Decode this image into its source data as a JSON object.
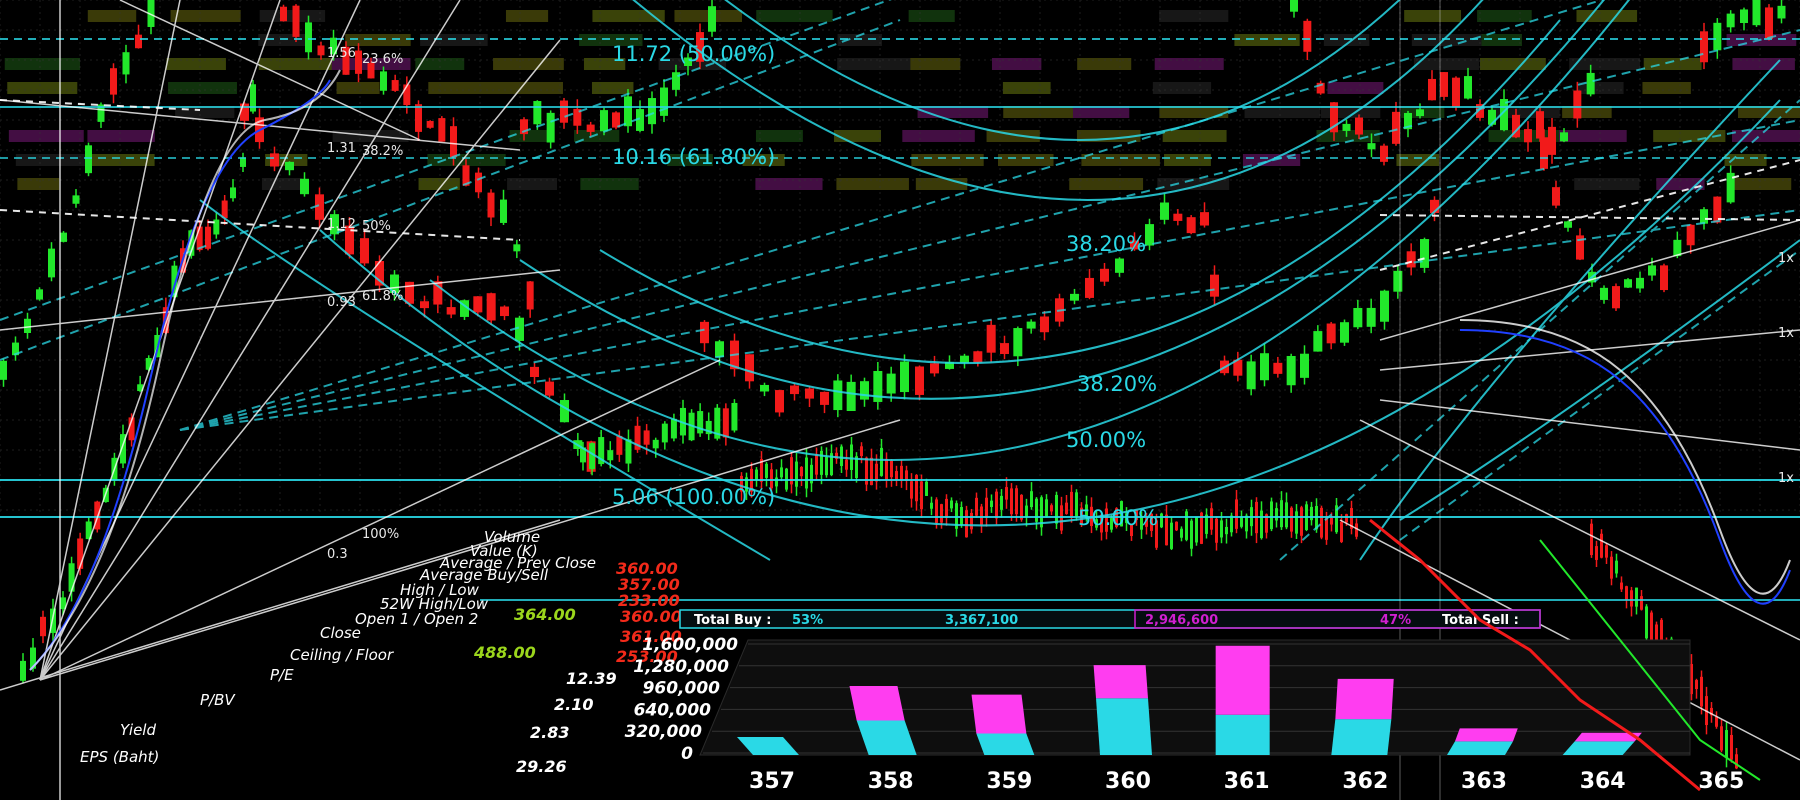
{
  "fib_labels": {
    "top_1": "11.72 (50.00%)",
    "top_2": "10.16 (61.80%)",
    "arc_382_upper": "38.20%",
    "arc_382_lower": "38.20%",
    "arc_500_upper": "50.00%",
    "arc_500_lower": "50.00%",
    "base": "5.06 (100.00%)"
  },
  "side_ratios": {
    "r1": "1.56",
    "p1": "23.6%",
    "r2": "1.31",
    "p2": "38.2%",
    "r3": "1.12",
    "p3": "50%",
    "r4": "0.93",
    "p4": "61.8%",
    "r5": "0.3",
    "p5": "100%"
  },
  "right_edge": {
    "a": "1x",
    "b": "1x",
    "c": "1x"
  },
  "stats": {
    "labels": [
      "Volume",
      "Value (K)",
      "Average / Prev Close",
      "Average Buy/Sell",
      "High / Low",
      "52W High/Low",
      "Open 1 / Open 2",
      "Close",
      "Ceiling / Floor",
      "P/E",
      "P/BV",
      "Yield",
      "EPS (Baht)"
    ],
    "col_a": [
      "364.00",
      "488.00"
    ],
    "col_b": [
      "360.00",
      "357.00",
      "233.00",
      "360.00",
      "361.00",
      "253.00"
    ],
    "col_c": [
      "12.39",
      "2.10",
      "2.83",
      "29.26"
    ]
  },
  "total_bar": {
    "buy_label": "Total Buy :",
    "buy_pct": "53%",
    "buy_vol": "3,367,100",
    "sell_vol": "2,946,600",
    "sell_pct": "47%",
    "sell_label": "Total Sell :"
  },
  "colors": {
    "cyan": "#2ad9e6",
    "magenta": "#ff3df0",
    "bull": "#22e82b",
    "bear": "#f21a1a"
  },
  "chart_data": {
    "type": "bar",
    "categories": [
      "357",
      "358",
      "359",
      "360",
      "361",
      "362",
      "363",
      "364",
      "365"
    ],
    "y_tick_labels": [
      "1,600,000",
      "1,280,000",
      "960,000",
      "640,000",
      "320,000",
      "0"
    ],
    "ylim": [
      0,
      1600000
    ],
    "series": [
      {
        "values": [
          0,
          480000,
          540000,
          460000,
          960000,
          560000,
          180000,
          120000,
          0
        ]
      },
      {
        "values": [
          250000,
          480000,
          300000,
          790000,
          560000,
          500000,
          190000,
          190000,
          0
        ]
      }
    ]
  }
}
